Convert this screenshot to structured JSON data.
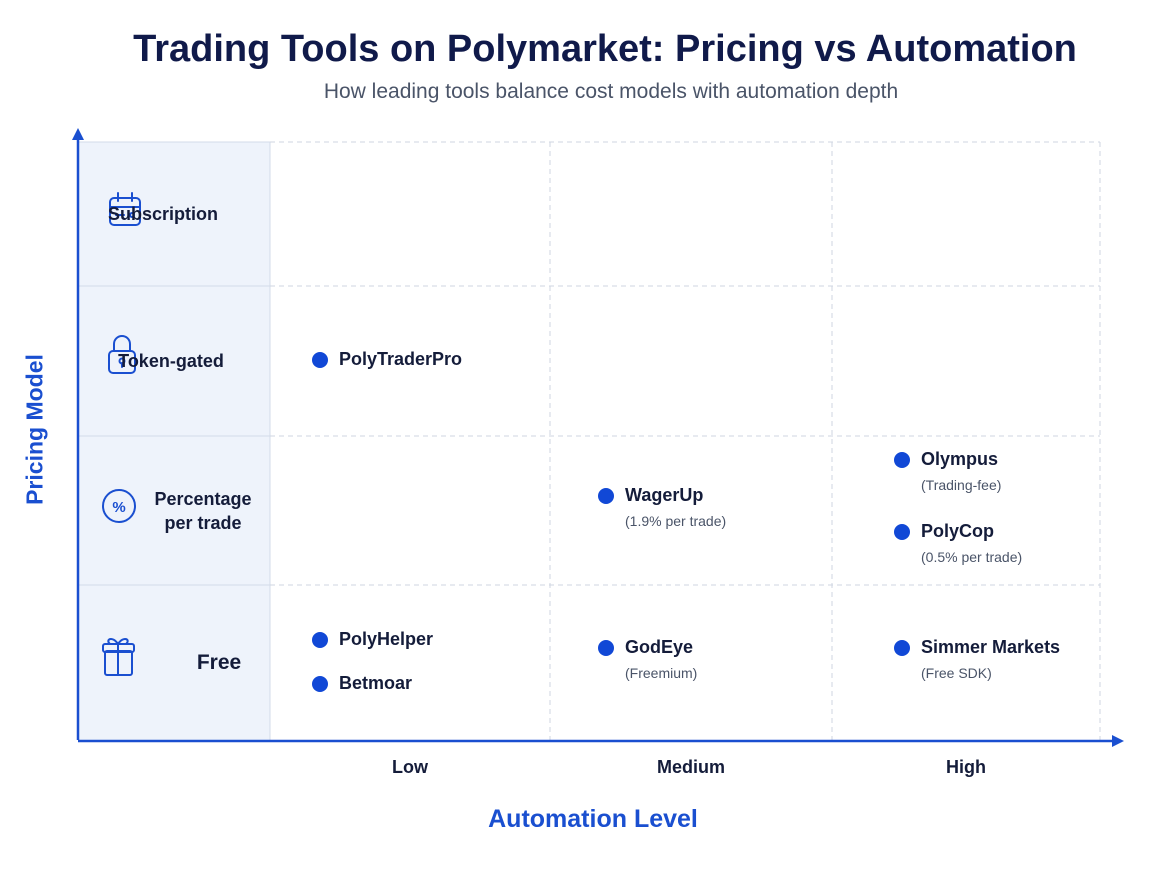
{
  "title": "Trading Tools on Polymarket: Pricing vs Automation",
  "subtitle": "How leading tools balance cost models with automation depth",
  "y_axis_label": "Pricing Model",
  "x_axis_label": "Automation Level",
  "columns": [
    "Low",
    "Medium",
    "High"
  ],
  "rows": [
    {
      "label": "Subscription",
      "cells": [
        [],
        [],
        []
      ]
    },
    {
      "label": "Token-gated",
      "cells": [
        [
          {
            "name": "PolyTraderPro"
          }
        ],
        [],
        []
      ]
    },
    {
      "label": "Percentage per trade",
      "cells": [
        [],
        [
          {
            "name": "WagerUp",
            "note": "(1.9% per trade)"
          }
        ],
        [
          {
            "name": "Olympus",
            "note": "(Trading-fee)"
          },
          {
            "name": "PolyCop",
            "note": "(0.5% per trade)"
          }
        ]
      ]
    },
    {
      "label": "Free",
      "cells": [
        [
          {
            "name": "PolyHelper"
          },
          {
            "name": "Betmoar"
          }
        ],
        [
          {
            "name": "GodEye",
            "note": "(Freemium)"
          }
        ],
        [
          {
            "name": "Simmer Markets",
            "note": "(Free SDK)"
          }
        ]
      ]
    }
  ]
}
